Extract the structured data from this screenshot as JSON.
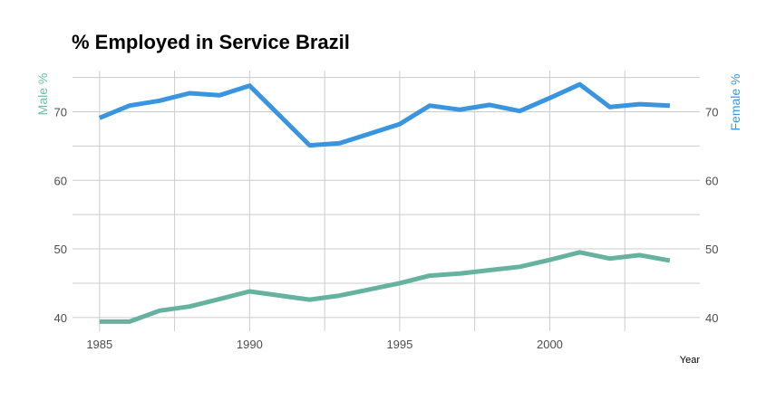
{
  "chart_data": {
    "type": "line",
    "title": "% Employed in Service Brazil",
    "xlabel": "Year",
    "ylabel_left": "Male %",
    "ylabel_right": "Female %",
    "x_ticks": [
      1985,
      1990,
      1995,
      2000
    ],
    "y_ticks": [
      40,
      50,
      60,
      70
    ],
    "xlim": [
      1984.1,
      2005.0
    ],
    "ylim": [
      38.0,
      76.0
    ],
    "grid": true,
    "colors": {
      "male": "#66b2a0",
      "female": "#3a95e0",
      "grid": "#cccccc",
      "left_axis_title": "#66c2a5",
      "right_axis_title": "#3a95e0"
    },
    "x": [
      1985,
      1986,
      1987,
      1988,
      1989,
      1990,
      1992,
      1993,
      1994,
      1995,
      1996,
      1997,
      1998,
      1999,
      2000,
      2001,
      2002,
      2003,
      2004
    ],
    "series": [
      {
        "key": "female",
        "values": [
          69.1,
          70.9,
          71.6,
          72.7,
          72.4,
          73.8,
          65.1,
          65.4,
          66.8,
          68.2,
          70.9,
          70.3,
          71.0,
          70.1,
          72.0,
          74.0,
          70.7,
          71.1,
          70.9
        ]
      },
      {
        "key": "male",
        "values": [
          39.4,
          39.4,
          41.0,
          41.6,
          42.7,
          43.8,
          42.6,
          43.2,
          44.1,
          45.0,
          46.1,
          46.4,
          46.9,
          47.4,
          48.4,
          49.5,
          48.6,
          49.1,
          48.3
        ]
      }
    ]
  }
}
